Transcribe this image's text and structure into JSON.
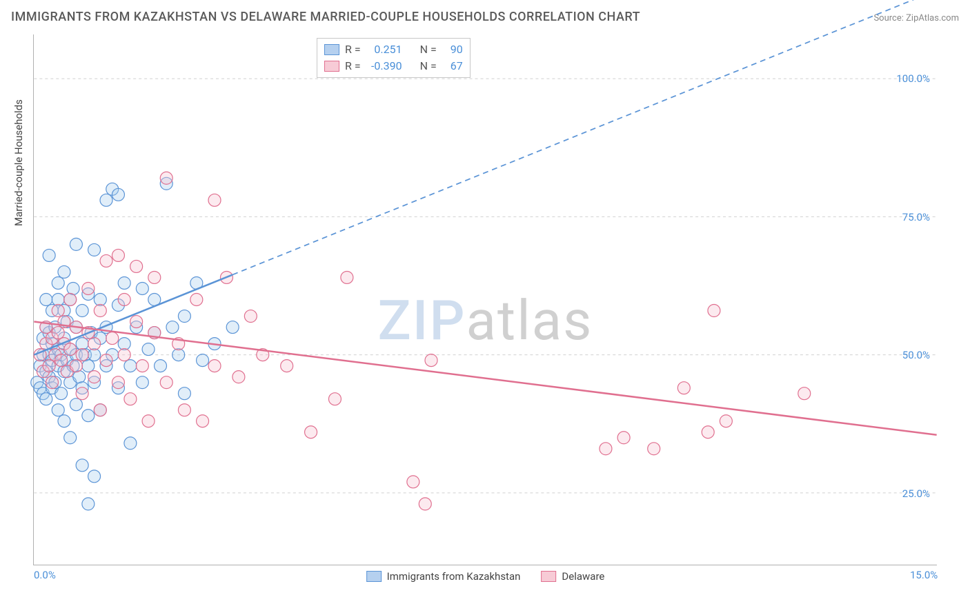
{
  "title": "IMMIGRANTS FROM KAZAKHSTAN VS DELAWARE MARRIED-COUPLE HOUSEHOLDS CORRELATION CHART",
  "source_label": "Source:",
  "source_name": "ZipAtlas.com",
  "y_axis_label": "Married-couple Households",
  "watermark_a": "ZIP",
  "watermark_b": "atlas",
  "chart": {
    "type": "scatter",
    "xlim": [
      0,
      15
    ],
    "ylim": [
      12,
      108
    ],
    "x_ticks": [
      0,
      15
    ],
    "x_tick_labels": [
      "0.0%",
      "15.0%"
    ],
    "y_ticks": [
      25,
      50,
      75,
      100
    ],
    "y_tick_labels": [
      "25.0%",
      "50.0%",
      "75.0%",
      "100.0%"
    ],
    "background_color": "#ffffff",
    "grid_color": "#d0d0d0",
    "axis_color": "#b0b0b0",
    "marker_radius": 9,
    "marker_stroke_width": 1.2,
    "marker_fill_opacity": 0.35,
    "series": [
      {
        "name": "Immigrants from Kazakhstan",
        "color_stroke": "#5b94d6",
        "color_fill": "#a8cdef",
        "R": "0.251",
        "N": "90",
        "trend": {
          "x1": 0,
          "y1": 50,
          "x2": 3.3,
          "y2": 64.5,
          "dash_x2": 15,
          "dash_y2": 116,
          "width": 2.5
        },
        "points": [
          [
            0.05,
            45
          ],
          [
            0.1,
            44
          ],
          [
            0.1,
            48
          ],
          [
            0.15,
            43
          ],
          [
            0.15,
            50
          ],
          [
            0.15,
            53
          ],
          [
            0.2,
            42
          ],
          [
            0.2,
            47
          ],
          [
            0.2,
            55
          ],
          [
            0.2,
            60
          ],
          [
            0.25,
            46
          ],
          [
            0.25,
            50
          ],
          [
            0.25,
            54
          ],
          [
            0.25,
            68
          ],
          [
            0.3,
            44
          ],
          [
            0.3,
            49
          ],
          [
            0.3,
            52
          ],
          [
            0.3,
            58
          ],
          [
            0.35,
            45
          ],
          [
            0.35,
            55
          ],
          [
            0.4,
            40
          ],
          [
            0.4,
            48
          ],
          [
            0.4,
            51
          ],
          [
            0.4,
            60
          ],
          [
            0.4,
            63
          ],
          [
            0.45,
            43
          ],
          [
            0.45,
            50
          ],
          [
            0.5,
            38
          ],
          [
            0.5,
            47
          ],
          [
            0.5,
            53
          ],
          [
            0.5,
            58
          ],
          [
            0.5,
            65
          ],
          [
            0.55,
            49
          ],
          [
            0.55,
            56
          ],
          [
            0.6,
            35
          ],
          [
            0.6,
            45
          ],
          [
            0.6,
            51
          ],
          [
            0.6,
            60
          ],
          [
            0.65,
            48
          ],
          [
            0.65,
            62
          ],
          [
            0.7,
            41
          ],
          [
            0.7,
            50
          ],
          [
            0.7,
            55
          ],
          [
            0.7,
            70
          ],
          [
            0.75,
            46
          ],
          [
            0.8,
            30
          ],
          [
            0.8,
            44
          ],
          [
            0.8,
            52
          ],
          [
            0.8,
            58
          ],
          [
            0.85,
            50
          ],
          [
            0.9,
            23
          ],
          [
            0.9,
            39
          ],
          [
            0.9,
            48
          ],
          [
            0.9,
            61
          ],
          [
            0.95,
            54
          ],
          [
            1.0,
            28
          ],
          [
            1.0,
            45
          ],
          [
            1.0,
            50
          ],
          [
            1.0,
            69
          ],
          [
            1.1,
            40
          ],
          [
            1.1,
            53
          ],
          [
            1.1,
            60
          ],
          [
            1.2,
            48
          ],
          [
            1.2,
            55
          ],
          [
            1.2,
            78
          ],
          [
            1.3,
            50
          ],
          [
            1.3,
            80
          ],
          [
            1.4,
            44
          ],
          [
            1.4,
            59
          ],
          [
            1.4,
            79
          ],
          [
            1.5,
            52
          ],
          [
            1.5,
            63
          ],
          [
            1.6,
            48
          ],
          [
            1.6,
            34
          ],
          [
            1.7,
            55
          ],
          [
            1.8,
            45
          ],
          [
            1.8,
            62
          ],
          [
            1.9,
            51
          ],
          [
            2.0,
            54
          ],
          [
            2.0,
            60
          ],
          [
            2.1,
            48
          ],
          [
            2.2,
            81
          ],
          [
            2.3,
            55
          ],
          [
            2.4,
            50
          ],
          [
            2.5,
            43
          ],
          [
            2.5,
            57
          ],
          [
            2.7,
            63
          ],
          [
            2.8,
            49
          ],
          [
            3.0,
            52
          ],
          [
            3.3,
            55
          ]
        ]
      },
      {
        "name": "Delaware",
        "color_stroke": "#e06f8f",
        "color_fill": "#f6c2d0",
        "R": "-0.390",
        "N": "67",
        "trend": {
          "x1": 0,
          "y1": 56,
          "x2": 15,
          "y2": 35.5,
          "width": 2.5
        },
        "points": [
          [
            0.1,
            50
          ],
          [
            0.15,
            47
          ],
          [
            0.2,
            52
          ],
          [
            0.2,
            55
          ],
          [
            0.25,
            48
          ],
          [
            0.3,
            45
          ],
          [
            0.3,
            53
          ],
          [
            0.35,
            50
          ],
          [
            0.4,
            54
          ],
          [
            0.4,
            58
          ],
          [
            0.45,
            49
          ],
          [
            0.5,
            52
          ],
          [
            0.5,
            56
          ],
          [
            0.55,
            47
          ],
          [
            0.6,
            51
          ],
          [
            0.6,
            60
          ],
          [
            0.7,
            48
          ],
          [
            0.7,
            55
          ],
          [
            0.8,
            50
          ],
          [
            0.8,
            43
          ],
          [
            0.9,
            54
          ],
          [
            0.9,
            62
          ],
          [
            1.0,
            46
          ],
          [
            1.0,
            52
          ],
          [
            1.1,
            40
          ],
          [
            1.1,
            58
          ],
          [
            1.2,
            49
          ],
          [
            1.2,
            67
          ],
          [
            1.3,
            53
          ],
          [
            1.4,
            45
          ],
          [
            1.4,
            68
          ],
          [
            1.5,
            50
          ],
          [
            1.5,
            60
          ],
          [
            1.6,
            42
          ],
          [
            1.7,
            56
          ],
          [
            1.7,
            66
          ],
          [
            1.8,
            48
          ],
          [
            1.9,
            38
          ],
          [
            2.0,
            54
          ],
          [
            2.0,
            64
          ],
          [
            2.2,
            45
          ],
          [
            2.2,
            82
          ],
          [
            2.4,
            52
          ],
          [
            2.5,
            40
          ],
          [
            2.7,
            60
          ],
          [
            2.8,
            38
          ],
          [
            3.0,
            48
          ],
          [
            3.0,
            78
          ],
          [
            3.2,
            64
          ],
          [
            3.4,
            46
          ],
          [
            3.6,
            57
          ],
          [
            3.8,
            50
          ],
          [
            4.2,
            48
          ],
          [
            4.6,
            36
          ],
          [
            5.0,
            42
          ],
          [
            5.2,
            64
          ],
          [
            6.3,
            27
          ],
          [
            6.5,
            23
          ],
          [
            6.6,
            49
          ],
          [
            9.5,
            33
          ],
          [
            9.8,
            35
          ],
          [
            10.3,
            33
          ],
          [
            10.8,
            44
          ],
          [
            11.2,
            36
          ],
          [
            11.3,
            58
          ],
          [
            11.5,
            38
          ],
          [
            12.8,
            43
          ]
        ]
      }
    ],
    "legend_R_label": "R =",
    "legend_N_label": "N ="
  }
}
